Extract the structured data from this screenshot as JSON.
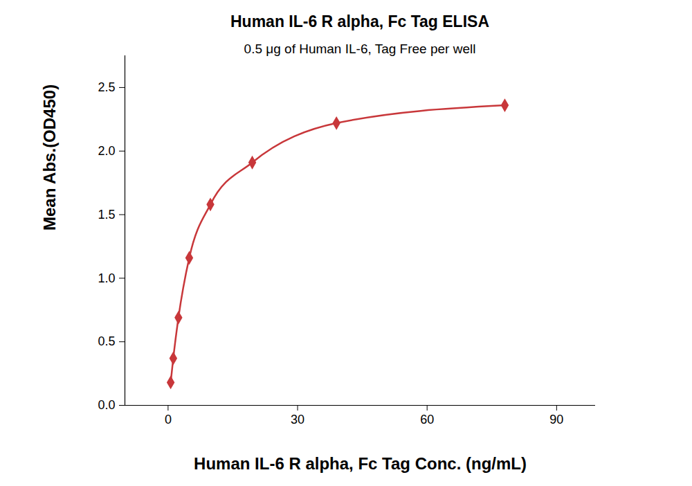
{
  "chart_data": {
    "type": "line",
    "title": "Human IL-6 R alpha, Fc Tag ELISA",
    "subtitle": "0.5 μg of Human IL-6, Tag Free per well",
    "x_label": "Human IL-6 R alpha, Fc Tag Conc. (ng/mL)",
    "y_label": "Mean Abs.(OD450)",
    "x": [
      0.6,
      1.2,
      2.4,
      4.9,
      9.8,
      19.5,
      39,
      78
    ],
    "values": [
      0.18,
      0.37,
      0.69,
      1.16,
      1.58,
      1.91,
      2.22,
      2.36
    ],
    "color": "#c8373a",
    "marker": "diamond",
    "xlim": [
      -10,
      99
    ],
    "xticks": [
      0,
      30,
      60,
      90
    ],
    "ylim": [
      0,
      2.75
    ],
    "yticks": [
      {
        "value": 0,
        "label": "0.0"
      },
      {
        "value": 0.5,
        "label": "0.5"
      },
      {
        "value": 1,
        "label": "1.0"
      },
      {
        "value": 1.5,
        "label": "1.5"
      },
      {
        "value": 2,
        "label": "2.0"
      },
      {
        "value": 2.5,
        "label": "2.5"
      }
    ],
    "grid": false
  }
}
